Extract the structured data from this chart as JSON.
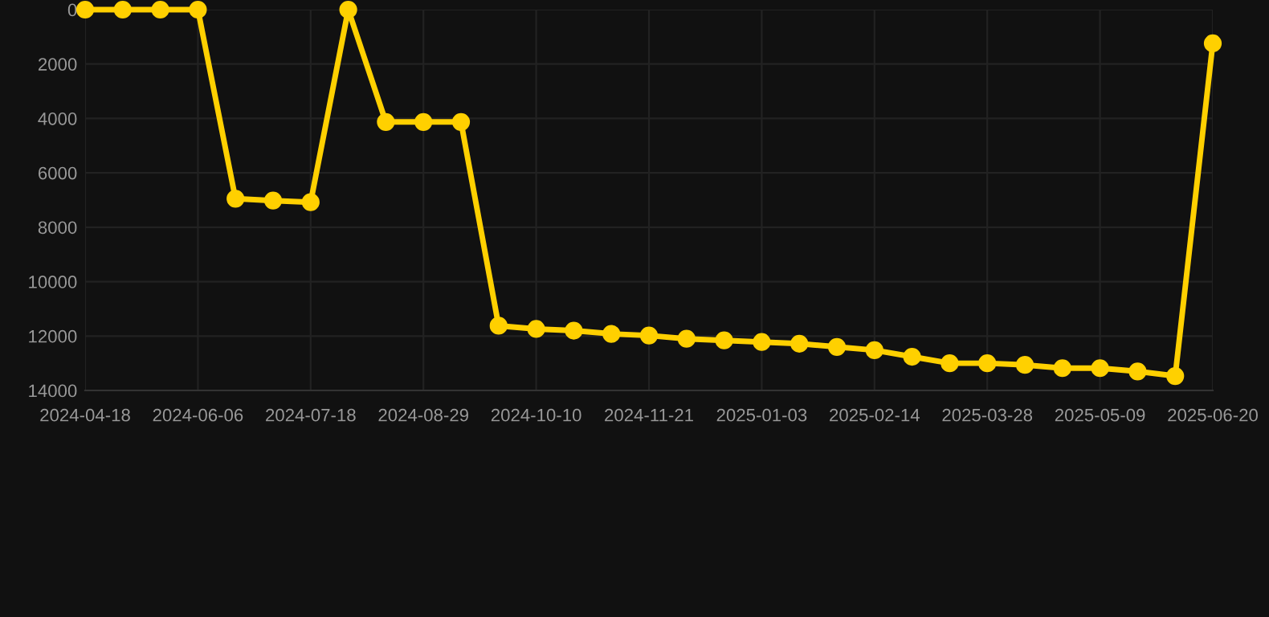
{
  "chart_data": {
    "type": "line",
    "categories": [
      "2024-04-18",
      null,
      null,
      "2024-06-06",
      null,
      null,
      "2024-07-18",
      null,
      null,
      "2024-08-29",
      null,
      null,
      "2024-10-10",
      null,
      null,
      "2024-11-21",
      null,
      null,
      "2025-01-03",
      null,
      null,
      "2025-02-14",
      null,
      null,
      "2025-03-28",
      null,
      null,
      "2025-05-09",
      null,
      null,
      "2025-06-20"
    ],
    "series": [
      {
        "color": "#ffd000",
        "values": [
          0,
          0,
          0,
          0,
          6950,
          7020,
          7080,
          0,
          4130,
          4130,
          4130,
          11620,
          11740,
          11800,
          11920,
          11980,
          12100,
          12160,
          12220,
          12280,
          12400,
          12520,
          12760,
          13000,
          13000,
          13060,
          13180,
          13180,
          13300,
          13470,
          1240
        ]
      }
    ],
    "ylim": [
      14000,
      0
    ],
    "yticks": [
      0,
      2000,
      4000,
      6000,
      8000,
      10000,
      12000,
      14000
    ],
    "grid": true,
    "marker": "circle",
    "line_style": "solid"
  }
}
